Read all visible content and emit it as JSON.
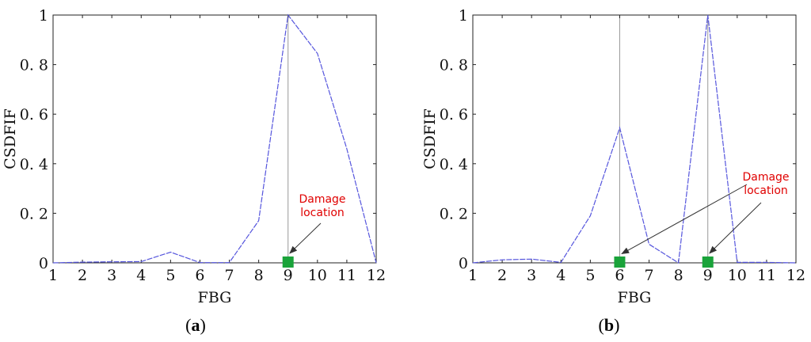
{
  "chart_data": [
    {
      "type": "line",
      "panel_label": {
        "open": "(",
        "letter": "a",
        "close": ")"
      },
      "xlabel": "FBG",
      "ylabel": "CSDFIF",
      "x": [
        1,
        2,
        3,
        4,
        5,
        6,
        7,
        8,
        9,
        10,
        11,
        12
      ],
      "xlim": [
        1,
        12
      ],
      "ylim": [
        0,
        1
      ],
      "x_ticks": [
        "1",
        "2",
        "3",
        "4",
        "5",
        "6",
        "7",
        "8",
        "9",
        "10",
        "11",
        "12"
      ],
      "y_ticks": [
        {
          "value": 0,
          "label": "0"
        },
        {
          "value": 0.2,
          "label": "0. 2"
        },
        {
          "value": 0.4,
          "label": "0. 4"
        },
        {
          "value": 0.6,
          "label": "0. 6"
        },
        {
          "value": 0.8,
          "label": "0. 8"
        },
        {
          "value": 1,
          "label": "1"
        }
      ],
      "series": [
        {
          "values": [
            0,
            0.003,
            0.004,
            0.005,
            0.043,
            0.001,
            0.001,
            0.17,
            1.0,
            0.845,
            0.46,
            0.0
          ],
          "color": "#5555dd"
        }
      ],
      "vertical_lines_at_x": [
        9
      ],
      "damage_markers_x": [
        9
      ],
      "marker_color": "#1aa33a",
      "annotation": {
        "lines": [
          "Damage",
          "location"
        ],
        "color": "#e00000"
      },
      "grid": false
    },
    {
      "type": "line",
      "panel_label": {
        "open": "(",
        "letter": "b",
        "close": ")"
      },
      "xlabel": "FBG",
      "ylabel": "CSDFIF",
      "x": [
        1,
        2,
        3,
        4,
        5,
        6,
        7,
        8,
        9,
        10,
        11,
        12
      ],
      "xlim": [
        1,
        12
      ],
      "ylim": [
        0,
        1
      ],
      "x_ticks": [
        "1",
        "2",
        "3",
        "4",
        "5",
        "6",
        "7",
        "8",
        "9",
        "10",
        "11",
        "12"
      ],
      "y_ticks": [
        {
          "value": 0,
          "label": "0"
        },
        {
          "value": 0.2,
          "label": "0. 2"
        },
        {
          "value": 0.4,
          "label": "0. 4"
        },
        {
          "value": 0.6,
          "label": "0. 6"
        },
        {
          "value": 0.8,
          "label": "0. 8"
        },
        {
          "value": 1,
          "label": "1"
        }
      ],
      "series": [
        {
          "values": [
            0,
            0.012,
            0.015,
            0.002,
            0.19,
            0.545,
            0.075,
            0.0,
            1.0,
            0.002,
            0.002,
            0.0
          ],
          "color": "#5555dd"
        }
      ],
      "vertical_lines_at_x": [
        6,
        9
      ],
      "damage_markers_x": [
        6,
        9
      ],
      "marker_color": "#1aa33a",
      "annotation": {
        "lines": [
          "Damage",
          "location"
        ],
        "color": "#e00000"
      },
      "grid": false
    }
  ]
}
